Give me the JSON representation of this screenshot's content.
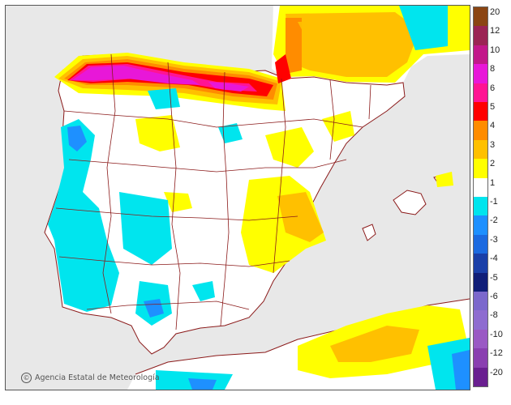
{
  "map": {
    "regions": [
      "Iberian Peninsula",
      "Balearic Islands",
      "Northern Africa",
      "Southern France"
    ],
    "credit": "Agencia Estatal de Meteorología"
  },
  "legend": {
    "items": [
      {
        "label": "20",
        "color": "#8b4513"
      },
      {
        "label": "12",
        "color": "#9b2454"
      },
      {
        "label": "10",
        "color": "#c2188a"
      },
      {
        "label": "8",
        "color": "#e817d8"
      },
      {
        "label": "6",
        "color": "#ff1493"
      },
      {
        "label": "5",
        "color": "#ff0000"
      },
      {
        "label": "4",
        "color": "#ff8c00"
      },
      {
        "label": "3",
        "color": "#ffc000"
      },
      {
        "label": "2",
        "color": "#ffff00"
      },
      {
        "label": "1",
        "color": "#ffffff"
      },
      {
        "label": "-1",
        "color": "#00e5ee"
      },
      {
        "label": "-2",
        "color": "#1e90ff"
      },
      {
        "label": "-3",
        "color": "#1c6ae0"
      },
      {
        "label": "-4",
        "color": "#1a3fa8"
      },
      {
        "label": "-5",
        "color": "#101e78"
      },
      {
        "label": "-6",
        "color": "#7b68cc"
      },
      {
        "label": "-8",
        "color": "#8e6cd0"
      },
      {
        "label": "-10",
        "color": "#9a59c4"
      },
      {
        "label": "-12",
        "color": "#8a3fb0"
      },
      {
        "label": "-20",
        "color": "#6a1f90"
      }
    ]
  },
  "colors": {
    "land": "#ffffff",
    "sea": "#e8e8e8",
    "border": "#8b1a1a",
    "warm_1": "#ffff00",
    "warm_2": "#ffc000",
    "warm_3": "#ff8c00",
    "warm_4": "#ff0000",
    "warm_5": "#ff1493",
    "warm_6": "#e817d8",
    "cool_1": "#00e5ee",
    "cool_2": "#1e90ff",
    "cool_3": "#1a3fa8"
  }
}
